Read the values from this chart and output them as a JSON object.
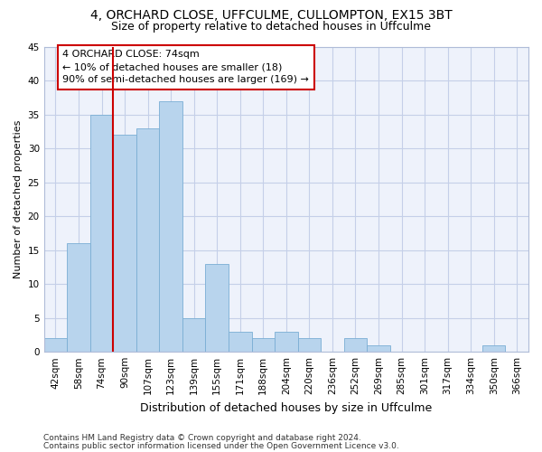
{
  "title1": "4, ORCHARD CLOSE, UFFCULME, CULLOMPTON, EX15 3BT",
  "title2": "Size of property relative to detached houses in Uffculme",
  "xlabel": "Distribution of detached houses by size in Uffculme",
  "ylabel": "Number of detached properties",
  "categories": [
    "42sqm",
    "58sqm",
    "74sqm",
    "90sqm",
    "107sqm",
    "123sqm",
    "139sqm",
    "155sqm",
    "171sqm",
    "188sqm",
    "204sqm",
    "220sqm",
    "236sqm",
    "252sqm",
    "269sqm",
    "285sqm",
    "301sqm",
    "317sqm",
    "334sqm",
    "350sqm",
    "366sqm"
  ],
  "values": [
    2,
    16,
    35,
    32,
    33,
    37,
    5,
    13,
    3,
    2,
    3,
    2,
    0,
    2,
    1,
    0,
    0,
    0,
    0,
    1,
    0
  ],
  "bar_color": "#b8d4ed",
  "bar_edge_color": "#7aaed4",
  "highlight_index": 2,
  "highlight_line_color": "#cc0000",
  "annotation_line1": "4 ORCHARD CLOSE: 74sqm",
  "annotation_line2": "← 10% of detached houses are smaller (18)",
  "annotation_line3": "90% of semi-detached houses are larger (169) →",
  "annotation_box_color": "#ffffff",
  "annotation_box_edge": "#cc0000",
  "ylim": [
    0,
    45
  ],
  "yticks": [
    0,
    5,
    10,
    15,
    20,
    25,
    30,
    35,
    40,
    45
  ],
  "footer1": "Contains HM Land Registry data © Crown copyright and database right 2024.",
  "footer2": "Contains public sector information licensed under the Open Government Licence v3.0.",
  "bg_color": "#eef2fb",
  "grid_color": "#c5cfe8",
  "title1_fontsize": 10,
  "title2_fontsize": 9,
  "ylabel_fontsize": 8,
  "xlabel_fontsize": 9,
  "tick_fontsize": 7.5,
  "footer_fontsize": 6.5
}
